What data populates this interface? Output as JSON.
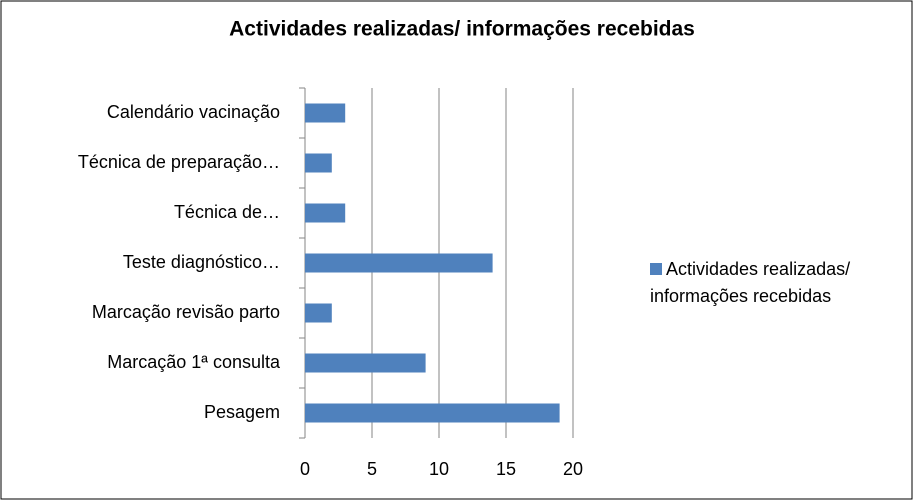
{
  "chart_data": {
    "type": "bar",
    "orientation": "horizontal",
    "title": "Actividades realizadas/ informações recebidas",
    "categories": [
      "Calendário vacinação",
      "Técnica de preparação…",
      "Técnica de…",
      "Teste diagnóstico…",
      "Marcação revisão parto",
      "Marcação 1ª consulta",
      "Pesagem"
    ],
    "series": [
      {
        "name": "Actividades realizadas/ informações recebidas",
        "color": "#4f81bd",
        "values": [
          3,
          2,
          3,
          14,
          2,
          9,
          19
        ]
      }
    ],
    "xlim": [
      0,
      20
    ],
    "xticks": [
      0,
      5,
      10,
      15,
      20
    ],
    "grid": true,
    "legend": "right"
  }
}
